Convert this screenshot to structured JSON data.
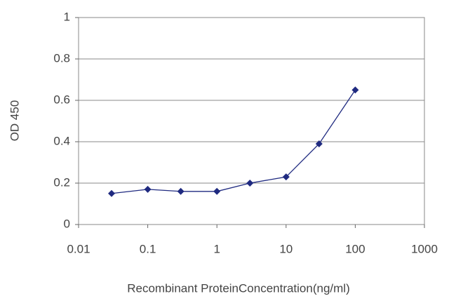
{
  "chart_data": {
    "type": "line",
    "x_label": "Recombinant ProteinConcentration(ng/ml)",
    "y_label": "OD 450",
    "x": [
      0.03,
      0.1,
      0.3,
      1,
      3,
      10,
      30,
      100
    ],
    "series": [
      {
        "color": "#1f2a80",
        "values": [
          0.15,
          0.17,
          0.16,
          0.16,
          0.2,
          0.23,
          0.39,
          0.65
        ]
      }
    ],
    "xlim": [
      0.01,
      1000
    ],
    "xticks": [
      0.01,
      0.1,
      1,
      10,
      100,
      1000
    ],
    "x_log": true,
    "ylim": [
      0,
      1
    ],
    "yticks": [
      0,
      0.2,
      0.4,
      0.6,
      0.8,
      1
    ],
    "grid": true
  }
}
